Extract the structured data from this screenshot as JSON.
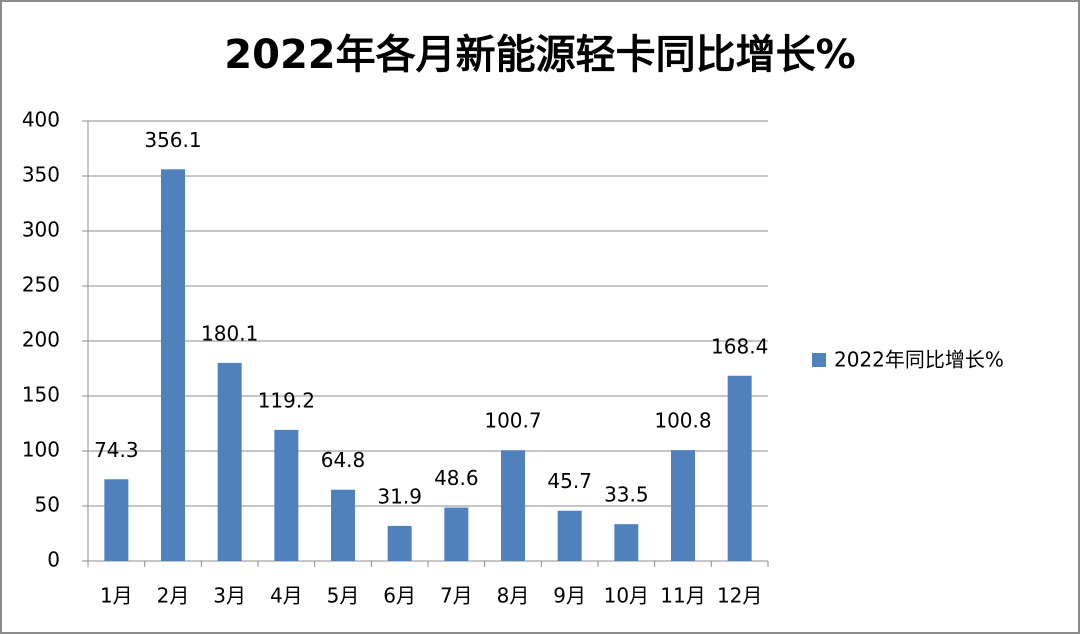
{
  "chart_data": {
    "type": "bar",
    "title": "2022年各月新能源轻卡同比增长%",
    "categories": [
      "1月",
      "2月",
      "3月",
      "4月",
      "5月",
      "6月",
      "7月",
      "8月",
      "9月",
      "10月",
      "11月",
      "12月"
    ],
    "series": [
      {
        "name": "2022年同比增长%",
        "color": "#4f81bd",
        "values": [
          74.3,
          356.1,
          180.1,
          119.2,
          64.8,
          31.9,
          48.6,
          100.7,
          45.7,
          33.5,
          100.8,
          168.4
        ]
      }
    ],
    "ylim": [
      0,
      400
    ],
    "yticks": [
      0,
      50,
      100,
      150,
      200,
      250,
      300,
      350,
      400
    ],
    "grid": true,
    "legend": "right"
  }
}
